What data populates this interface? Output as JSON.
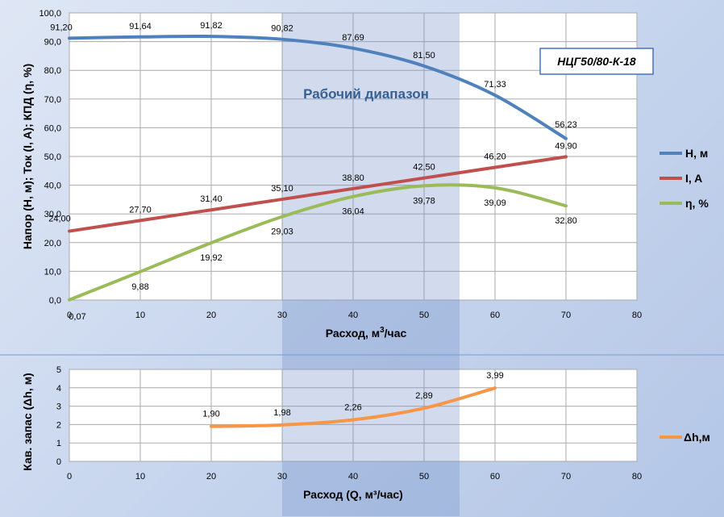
{
  "title_box": "НЦГ50/80-К-18",
  "range_label": "Рабочий диапазон",
  "range": {
    "x_from": 30,
    "x_to": 55
  },
  "chart_data": [
    {
      "type": "line",
      "xlabel_base": "Расход, м",
      "xlabel_sup": "3",
      "xlabel_tail": "/час",
      "ylabel": "Напор (Н, м); Ток (I, A); КПД (η, %)",
      "xlim": [
        0,
        80
      ],
      "ylim": [
        0,
        100
      ],
      "x_ticks": [
        "0",
        "10",
        "20",
        "30",
        "40",
        "50",
        "60",
        "70",
        "80"
      ],
      "y_ticks": [
        "0,0",
        "10,0",
        "20,0",
        "30,0",
        "40,0",
        "50,0",
        "60,0",
        "70,0",
        "80,0",
        "90,0",
        "100,0"
      ],
      "grid": true,
      "legend_position": "right",
      "series": [
        {
          "name": "Н, м",
          "color": "#4f81bd",
          "x": [
            0,
            10,
            20,
            30,
            40,
            50,
            60,
            70
          ],
          "y": [
            91.2,
            91.64,
            91.82,
            90.82,
            87.69,
            81.5,
            71.33,
            56.23
          ],
          "labels": [
            "91,20",
            "91,64",
            "91,82",
            "90,82",
            "87,69",
            "81,50",
            "71,33",
            "56,23"
          ]
        },
        {
          "name": "I, A",
          "color": "#c0504d",
          "x": [
            0,
            10,
            20,
            30,
            40,
            50,
            60,
            70
          ],
          "y": [
            24.0,
            27.7,
            31.4,
            35.1,
            38.8,
            42.5,
            46.2,
            49.9
          ],
          "labels": [
            "24,00",
            "27,70",
            "31,40",
            "35,10",
            "38,80",
            "42,50",
            "46,20",
            "49,90"
          ]
        },
        {
          "name": "η, %",
          "color": "#9bbb59",
          "x": [
            0,
            10,
            20,
            30,
            40,
            50,
            60,
            70
          ],
          "y": [
            0.07,
            9.88,
            19.92,
            29.03,
            36.04,
            39.78,
            39.09,
            32.8
          ],
          "labels": [
            "0,07",
            "9,88",
            "19,92",
            "29,03",
            "36,04",
            "39,78",
            "39,09",
            "32,80"
          ]
        }
      ]
    },
    {
      "type": "line",
      "xlabel": "Расход (Q, м³/час)",
      "ylabel": "Кав. запас (Δh, м)",
      "xlim": [
        0,
        80
      ],
      "ylim": [
        0,
        5
      ],
      "x_ticks": [
        "0",
        "10",
        "20",
        "30",
        "40",
        "50",
        "60",
        "70",
        "80"
      ],
      "y_ticks": [
        "0",
        "1",
        "2",
        "3",
        "4",
        "5"
      ],
      "grid": true,
      "legend_position": "right",
      "series": [
        {
          "name": "Δh,м",
          "color": "#f79646",
          "x": [
            20,
            30,
            40,
            50,
            60
          ],
          "y": [
            1.9,
            1.98,
            2.26,
            2.89,
            3.99
          ],
          "labels": [
            "1,90",
            "1,98",
            "2,26",
            "2,89",
            "3,99"
          ]
        }
      ]
    }
  ]
}
